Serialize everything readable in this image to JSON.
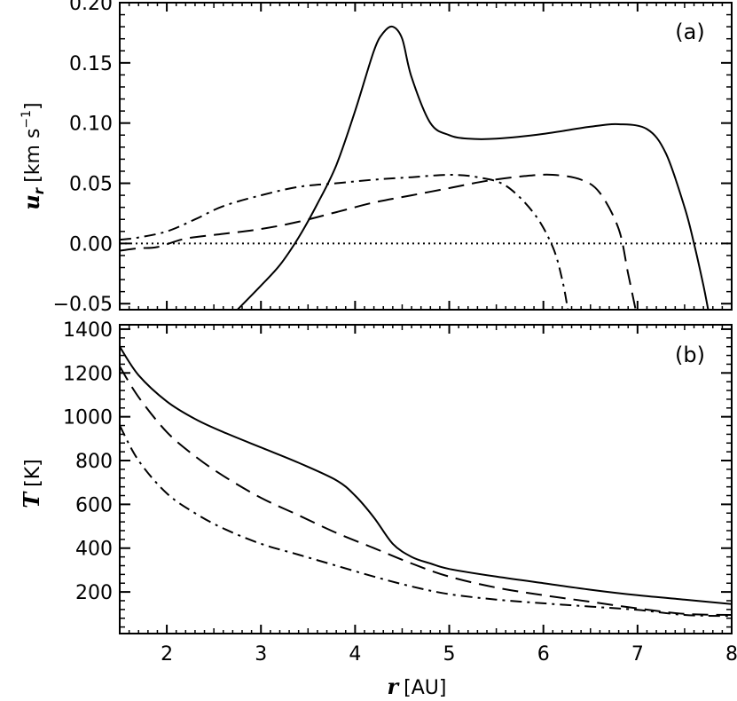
{
  "chart_data": [
    {
      "panel_label": "(a)",
      "type": "line",
      "ylabel_symbol": "u",
      "ylabel_subscript": "r",
      "ylabel_unit_open": "[km s",
      "ylabel_unit_exp": "−1",
      "ylabel_unit_close": "]",
      "xlim": [
        1.5,
        8
      ],
      "ylim": [
        -0.055,
        0.2
      ],
      "x_ticks": [
        2,
        3,
        4,
        5,
        6,
        7,
        8
      ],
      "y_ticks": [
        -0.05,
        0.0,
        0.05,
        0.1,
        0.15,
        0.2
      ],
      "y_tick_labels": [
        "−0.05",
        "0.00",
        "0.05",
        "0.10",
        "0.15",
        "0.20"
      ],
      "series": [
        {
          "style": "solid",
          "x": [
            2.75,
            3.0,
            3.2,
            3.4,
            3.6,
            3.8,
            4.0,
            4.2,
            4.3,
            4.4,
            4.5,
            4.6,
            4.8,
            5.0,
            5.2,
            5.5,
            6.0,
            6.5,
            6.8,
            7.1,
            7.3,
            7.5,
            7.6,
            7.7,
            7.75
          ],
          "y": [
            -0.055,
            -0.035,
            -0.018,
            0.005,
            0.033,
            0.065,
            0.11,
            0.16,
            0.175,
            0.18,
            0.17,
            0.138,
            0.1,
            0.09,
            0.087,
            0.087,
            0.091,
            0.097,
            0.099,
            0.095,
            0.075,
            0.03,
            0.0,
            -0.035,
            -0.055
          ]
        },
        {
          "style": "dashed",
          "x": [
            1.5,
            1.7,
            1.9,
            2.2,
            2.6,
            3.0,
            3.4,
            3.8,
            4.2,
            4.6,
            5.0,
            5.4,
            5.8,
            6.1,
            6.4,
            6.6,
            6.8,
            6.9,
            6.98
          ],
          "y": [
            -0.006,
            -0.004,
            -0.003,
            0.004,
            0.008,
            0.012,
            0.018,
            0.026,
            0.034,
            0.04,
            0.046,
            0.052,
            0.056,
            0.057,
            0.053,
            0.042,
            0.012,
            -0.025,
            -0.055
          ]
        },
        {
          "style": "dashdot",
          "x": [
            1.5,
            1.7,
            2.0,
            2.3,
            2.6,
            3.0,
            3.4,
            3.8,
            4.2,
            4.6,
            5.0,
            5.3,
            5.6,
            5.9,
            6.1,
            6.2,
            6.26
          ],
          "y": [
            0.003,
            0.005,
            0.01,
            0.02,
            0.031,
            0.04,
            0.047,
            0.05,
            0.053,
            0.055,
            0.057,
            0.055,
            0.048,
            0.025,
            -0.003,
            -0.03,
            -0.055
          ]
        },
        {
          "style": "dotted",
          "x": [
            1.5,
            8.0
          ],
          "y": [
            0.0,
            0.0
          ]
        }
      ]
    },
    {
      "panel_label": "(b)",
      "type": "line",
      "ylabel_symbol": "T",
      "ylabel_unit": "[K]",
      "xlabel_symbol": "r",
      "xlabel_unit": "[AU]",
      "xlim": [
        1.5,
        8
      ],
      "ylim": [
        10,
        1420
      ],
      "x_ticks": [
        2,
        3,
        4,
        5,
        6,
        7,
        8
      ],
      "x_tick_labels": [
        "2",
        "3",
        "4",
        "5",
        "6",
        "7",
        "8"
      ],
      "y_ticks": [
        200,
        400,
        600,
        800,
        1000,
        1200,
        1400
      ],
      "y_tick_labels": [
        "200",
        "400",
        "600",
        "800",
        "1000",
        "1200",
        "1400"
      ],
      "series": [
        {
          "style": "solid",
          "x": [
            1.5,
            1.7,
            2.0,
            2.3,
            2.6,
            3.0,
            3.4,
            3.8,
            4.0,
            4.2,
            4.4,
            4.6,
            4.8,
            5.0,
            5.5,
            6.0,
            6.5,
            7.0,
            7.5,
            8.0
          ],
          "y": [
            1320,
            1190,
            1070,
            990,
            930,
            860,
            790,
            710,
            640,
            540,
            420,
            360,
            330,
            305,
            270,
            240,
            210,
            185,
            165,
            145
          ]
        },
        {
          "style": "dashed",
          "x": [
            1.5,
            1.7,
            2.0,
            2.3,
            2.6,
            3.0,
            3.4,
            3.8,
            4.2,
            4.6,
            5.0,
            5.5,
            6.0,
            6.5,
            7.0,
            7.5,
            8.0
          ],
          "y": [
            1230,
            1090,
            930,
            820,
            730,
            630,
            550,
            470,
            400,
            330,
            270,
            220,
            185,
            155,
            125,
            100,
            95
          ]
        },
        {
          "style": "dashdot",
          "x": [
            1.5,
            1.7,
            2.0,
            2.3,
            2.6,
            3.0,
            3.4,
            3.8,
            4.2,
            4.6,
            5.0,
            5.5,
            6.0,
            6.5,
            7.0,
            7.5,
            8.0
          ],
          "y": [
            960,
            800,
            650,
            560,
            490,
            420,
            370,
            320,
            270,
            225,
            190,
            165,
            148,
            133,
            118,
            95,
            90
          ]
        }
      ]
    }
  ]
}
